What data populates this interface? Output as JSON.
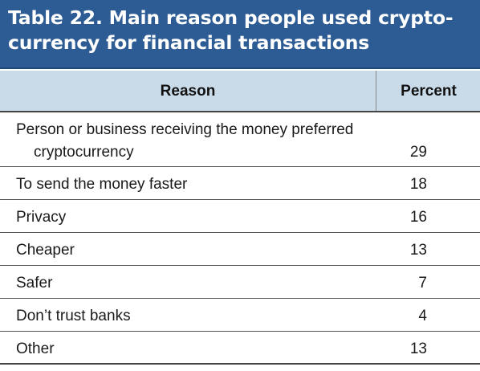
{
  "table": {
    "title_line1": "Table 22. Main reason people used crypto-",
    "title_line2": "currency for financial transactions",
    "columns": {
      "reason": "Reason",
      "percent": "Percent"
    },
    "rows": [
      {
        "reason_line1": "Person or business receiving the money preferred",
        "reason_line2": "cryptocurrency",
        "percent": "29"
      },
      {
        "reason": "To send the money faster",
        "percent": "18"
      },
      {
        "reason": "Privacy",
        "percent": "16"
      },
      {
        "reason": "Cheaper",
        "percent": "13"
      },
      {
        "reason": "Safer",
        "percent": "7"
      },
      {
        "reason": "Don’t trust banks",
        "percent": "4"
      },
      {
        "reason": "Other",
        "percent": "13"
      }
    ]
  },
  "colors": {
    "header_bg": "#2d5c94",
    "column_header_bg": "#c9dae9"
  }
}
